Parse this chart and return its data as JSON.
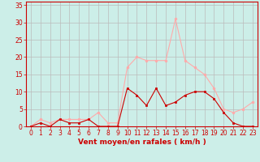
{
  "hours": [
    0,
    1,
    2,
    3,
    4,
    5,
    6,
    7,
    8,
    9,
    10,
    11,
    12,
    13,
    14,
    15,
    16,
    17,
    18,
    19,
    20,
    21,
    22,
    23
  ],
  "vent_moyen": [
    0,
    1,
    0,
    2,
    1,
    1,
    2,
    0,
    0,
    0,
    11,
    9,
    6,
    11,
    6,
    7,
    9,
    10,
    10,
    8,
    4,
    1,
    0,
    0
  ],
  "rafales": [
    0,
    2,
    1,
    2,
    2,
    2,
    2,
    4,
    1,
    1,
    17,
    20,
    19,
    19,
    19,
    31,
    19,
    17,
    15,
    11,
    5,
    4,
    5,
    7
  ],
  "color_moyen": "#cc0000",
  "color_rafales": "#ffaaaa",
  "bg_color": "#cceee8",
  "grid_color": "#bbbbbb",
  "xlabel": "Vent moyen/en rafales ( km/h )",
  "yticks": [
    0,
    5,
    10,
    15,
    20,
    25,
    30,
    35
  ],
  "ylim": [
    0,
    36
  ],
  "xlim": [
    -0.5,
    23.5
  ],
  "xlabel_color": "#cc0000",
  "tick_color": "#cc0000",
  "tick_fontsize": 5.5,
  "xlabel_fontsize": 6.5
}
